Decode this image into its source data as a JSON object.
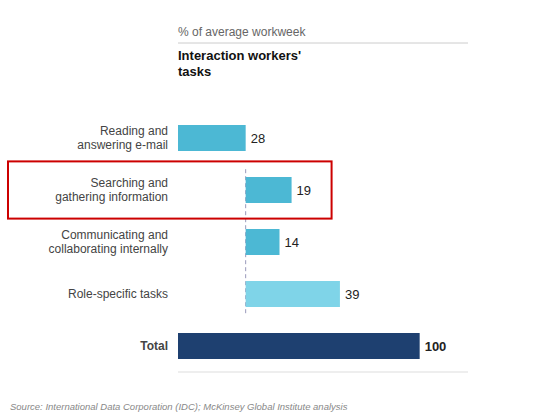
{
  "chart_data": {
    "type": "bar",
    "orientation": "horizontal",
    "title": "% of average workweek",
    "subtitle": "Interaction workers'\ntasks",
    "annotations": [
      "Source: International Data Corporation (IDC); McKinsey Global Institute analysis"
    ],
    "categories": [
      "Reading and\nanswering e-mail",
      "Searching and\ngathering information",
      "Communicating and\ncollaborating internally",
      "Role-specific tasks",
      "Total"
    ],
    "values": [
      28,
      19,
      14,
      39,
      100
    ],
    "starts": [
      0,
      28,
      28,
      28,
      0
    ],
    "colors": [
      "#4cb8d4",
      "#4cb8d4",
      "#4cb8d4",
      "#7fd4e8",
      "#1e4070"
    ],
    "highlight": {
      "index": 1,
      "color": "#cc0000"
    },
    "xlim": [
      0,
      120
    ],
    "data_labels": true,
    "tick_labels": "y",
    "grid": false
  }
}
